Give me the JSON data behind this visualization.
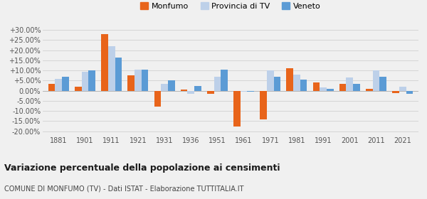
{
  "years": [
    1881,
    1901,
    1911,
    1921,
    1931,
    1936,
    1951,
    1961,
    1971,
    1981,
    1991,
    2001,
    2011,
    2021
  ],
  "monfumo": [
    3.5,
    2.0,
    28.0,
    7.5,
    -8.0,
    0.7,
    -1.5,
    -17.5,
    -14.0,
    11.0,
    4.0,
    3.5,
    1.0,
    -1.0
  ],
  "provincia_tv": [
    6.0,
    9.5,
    22.0,
    10.5,
    3.5,
    -1.5,
    7.0,
    -0.5,
    10.0,
    8.0,
    1.5,
    6.5,
    10.0,
    2.0
  ],
  "veneto": [
    7.0,
    10.0,
    16.5,
    10.5,
    5.0,
    2.5,
    10.5,
    -0.5,
    7.0,
    5.5,
    1.0,
    3.5,
    7.0,
    -1.5
  ],
  "color_monfumo": "#e8641a",
  "color_provincia": "#bdd0e9",
  "color_veneto": "#5b9bd5",
  "background": "#f0f0f0",
  "ylim_min": -22,
  "ylim_max": 32,
  "yticks": [
    -20,
    -15,
    -10,
    -5,
    0,
    5,
    10,
    15,
    20,
    25,
    30
  ],
  "ytick_labels": [
    "-20.00%",
    "-15.00%",
    "-10.00%",
    "-5.00%",
    "0.00%",
    "+5.00%",
    "+10.00%",
    "+15.00%",
    "+20.00%",
    "+25.00%",
    "+30.00%"
  ],
  "title": "Variazione percentuale della popolazione ai censimenti",
  "subtitle": "COMUNE DI MONFUMO (TV) - Dati ISTAT - Elaborazione TUTTITALIA.IT",
  "legend_labels": [
    "Monfumo",
    "Provincia di TV",
    "Veneto"
  ],
  "bar_width": 0.26,
  "grid_color": "#d0d0d0",
  "tick_fontsize": 7,
  "title_fontsize": 9,
  "subtitle_fontsize": 7
}
